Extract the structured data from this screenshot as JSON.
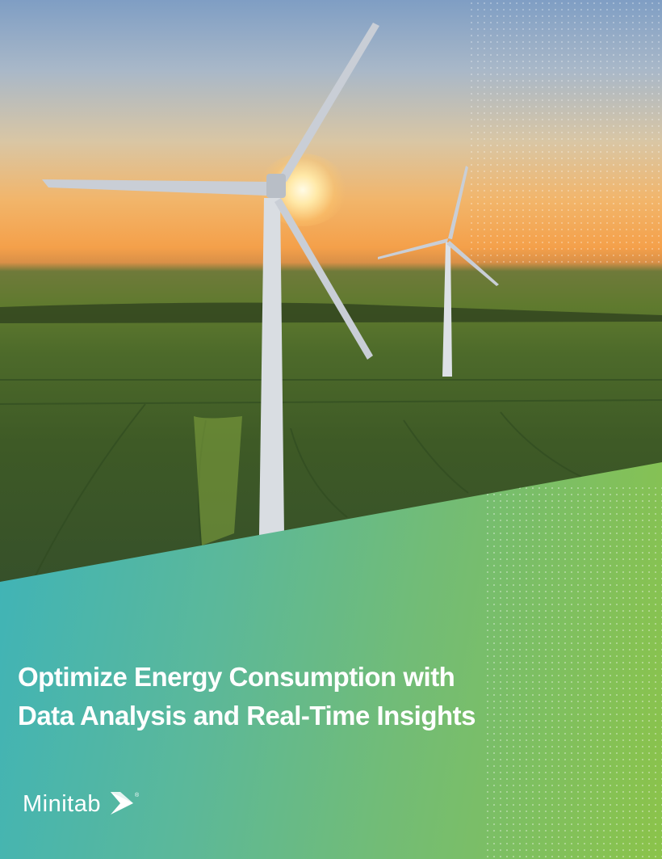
{
  "cover": {
    "title_line1": "Optimize Energy Consumption with",
    "title_line2": "Data Analysis and Real-Time Insights"
  },
  "brand": {
    "name": "Minitab",
    "registered": "®",
    "logo_icon": "minitab-arrow-logo-icon"
  },
  "colors": {
    "band_left": "#35b2c2",
    "band_right": "#8bc34a",
    "title": "#ffffff"
  },
  "image": {
    "subject": "wind-turbines-at-sunset-photo"
  }
}
